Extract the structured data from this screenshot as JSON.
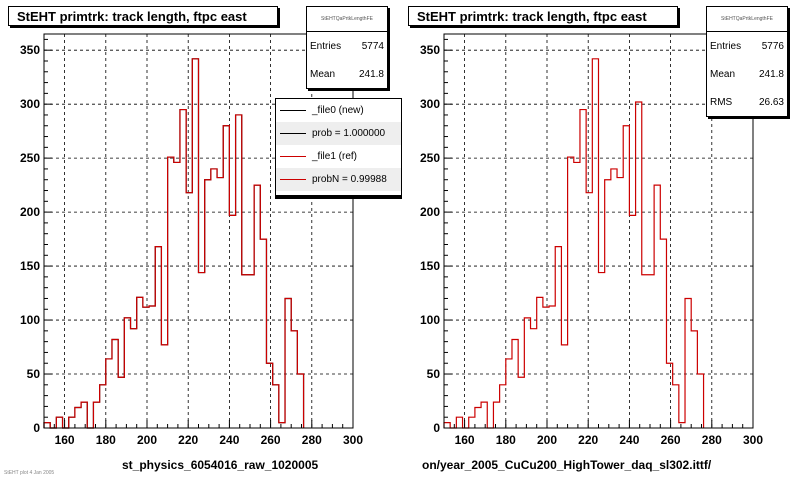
{
  "chart_data": [
    {
      "type": "bar",
      "title": "StEHT primtrk: track length, ftpc east",
      "xlabel": "st_physics_6054016_raw_1020005",
      "ylabel": "",
      "xlim": [
        150,
        300
      ],
      "ylim": [
        0,
        365
      ],
      "grid": true,
      "x_ticks": [
        160,
        180,
        200,
        220,
        240,
        260,
        280,
        300
      ],
      "y_ticks": [
        0,
        50,
        100,
        150,
        200,
        250,
        300,
        350
      ],
      "bin_edges_start": 150,
      "bin_width": 3,
      "stats": {
        "name": "StEHTQaPrtkLengthFE",
        "entries": "5774",
        "mean": "241.8"
      },
      "legend_position": "top-right",
      "legend": [
        "_file0 (new)",
        "prob = 1.000000",
        "_file1 (ref)",
        "probN = 0.99988"
      ],
      "series": [
        {
          "name": "_file0 (new)",
          "color": "#000000",
          "values": [
            5,
            0,
            10,
            0,
            10,
            19,
            24,
            0,
            24,
            40,
            64,
            82,
            47,
            102,
            92,
            121,
            112,
            113,
            168,
            77,
            251,
            246,
            295,
            218,
            342,
            144,
            230,
            240,
            232,
            280,
            197,
            290,
            142,
            142,
            225,
            175,
            60,
            40,
            5,
            120,
            90,
            50
          ]
        },
        {
          "name": "_file1 (ref)",
          "color": "#cc0000",
          "values": [
            5,
            0,
            10,
            0,
            10,
            19,
            24,
            0,
            24,
            40,
            64,
            82,
            47,
            102,
            92,
            121,
            112,
            113,
            168,
            77,
            251,
            246,
            295,
            218,
            342,
            144,
            230,
            240,
            232,
            280,
            197,
            290,
            142,
            142,
            225,
            175,
            60,
            40,
            5,
            120,
            90,
            50
          ]
        }
      ]
    },
    {
      "type": "bar",
      "title": "StEHT primtrk: track length, ftpc east",
      "xlabel": "on/year_2005_CuCu200_HighTower_daq_sl302.ittf/",
      "ylabel": "",
      "xlim": [
        150,
        300
      ],
      "ylim": [
        0,
        365
      ],
      "grid": true,
      "x_ticks": [
        160,
        180,
        200,
        220,
        240,
        260,
        280,
        300
      ],
      "y_ticks": [
        0,
        50,
        100,
        150,
        200,
        250,
        300,
        350
      ],
      "bin_edges_start": 150,
      "bin_width": 3,
      "stats": {
        "name": "StEHTQaPrtkLengthFE",
        "entries": "5776",
        "mean": "241.8",
        "rms": "26.63"
      },
      "series": [
        {
          "color": "#cc0000",
          "values": [
            5,
            0,
            10,
            0,
            10,
            19,
            24,
            0,
            24,
            40,
            64,
            82,
            47,
            102,
            92,
            121,
            112,
            113,
            168,
            77,
            251,
            246,
            295,
            218,
            342,
            144,
            230,
            240,
            232,
            280,
            197,
            302,
            142,
            142,
            225,
            175,
            60,
            40,
            5,
            120,
            90,
            50
          ]
        }
      ]
    }
  ],
  "labels": {
    "entries": "Entries",
    "mean": "Mean",
    "rms": "RMS"
  },
  "footer_text": "StEHT plot 4 Jan 2005"
}
